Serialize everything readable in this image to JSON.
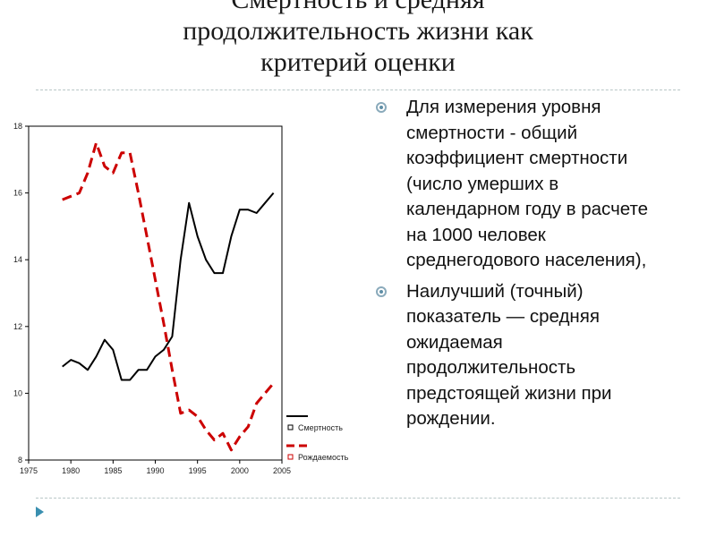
{
  "slide": {
    "title_lines": [
      "Смертность  и средняя",
      "продолжительность жизни как",
      "критерий оценки"
    ],
    "bullets": [
      "Для измерения уровня\nсмертности  - общий\nкоэффициент смертности\n(число умерших в\nкалендарном году в расчете\nна 1000 человек\nсреднегодового населения),",
      "Наилучший (точный)\nпоказатель — средняя\nожидаемая\nпродолжительность\nпредстоящей жизни при\nрождении."
    ]
  },
  "chart_data": {
    "type": "line",
    "xlim": [
      1975,
      2005
    ],
    "ylim": [
      8,
      18
    ],
    "x_ticks": [
      "1975",
      "1980",
      "1985",
      "1990",
      "1995",
      "2000",
      "2005"
    ],
    "y_ticks": [
      "8",
      "10",
      "12",
      "14",
      "16",
      "18"
    ],
    "legend_position": "bottom-right",
    "series": [
      {
        "name": "Смертность",
        "color": "#000000",
        "style": "solid",
        "x": [
          1979,
          1980,
          1981,
          1982,
          1983,
          1984,
          1985,
          1986,
          1987,
          1988,
          1989,
          1990,
          1991,
          1992,
          1993,
          1994,
          1995,
          1996,
          1997,
          1998,
          1999,
          2000,
          2001,
          2002,
          2003,
          2004
        ],
        "y": [
          10.8,
          11.0,
          10.9,
          10.7,
          11.1,
          11.6,
          11.3,
          10.4,
          10.4,
          10.7,
          10.7,
          11.1,
          11.3,
          11.7,
          14.0,
          15.7,
          14.7,
          14.0,
          13.6,
          13.6,
          14.7,
          15.5,
          15.5,
          15.4,
          15.7,
          16.0
        ]
      },
      {
        "name": "Рождаемость",
        "color": "#cc0000",
        "style": "dashed",
        "x": [
          1979,
          1980,
          1981,
          1982,
          1983,
          1984,
          1985,
          1986,
          1987,
          1988,
          1989,
          1990,
          1991,
          1992,
          1993,
          1994,
          1995,
          1996,
          1997,
          1998,
          1999,
          2000,
          2001,
          2002,
          2003,
          2004
        ],
        "y": [
          15.8,
          15.9,
          16.0,
          16.6,
          17.5,
          16.8,
          16.6,
          17.2,
          17.2,
          16.0,
          14.7,
          13.4,
          12.1,
          10.7,
          9.4,
          9.5,
          9.3,
          8.9,
          8.6,
          8.8,
          8.3,
          8.7,
          9.0,
          9.7,
          10.0,
          10.3
        ]
      }
    ]
  }
}
